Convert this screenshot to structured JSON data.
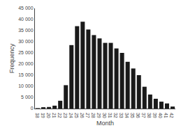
{
  "chart_data": {
    "type": "bar",
    "categories": [
      18,
      19,
      20,
      21,
      22,
      23,
      24,
      25,
      26,
      27,
      28,
      29,
      30,
      31,
      32,
      33,
      34,
      35,
      36,
      37,
      38,
      39,
      40,
      41,
      42
    ],
    "values": [
      200,
      600,
      700,
      1300,
      3500,
      10500,
      28500,
      37000,
      39000,
      35500,
      33000,
      31500,
      29500,
      29500,
      27000,
      25000,
      21000,
      18000,
      15000,
      9800,
      6300,
      4400,
      3100,
      2300,
      900
    ],
    "color": "#1a1a1a",
    "xlabel": "Month",
    "ylabel": "Frequency",
    "ylim": [
      0,
      45000
    ],
    "yticks": [
      0,
      {
        "value": 5000,
        "label": "5 000"
      },
      {
        "value": 10000,
        "label": "10 000"
      },
      {
        "value": 15000,
        "label": "15 000"
      },
      {
        "value": 20000,
        "label": "20 000"
      },
      {
        "value": 25000,
        "label": "25 000"
      },
      {
        "value": 30000,
        "label": "30 000"
      },
      {
        "value": 35000,
        "label": "35 000"
      },
      {
        "value": 40000,
        "label": "40 000"
      },
      {
        "value": 45000,
        "label": "45 000"
      }
    ],
    "grid": false
  }
}
